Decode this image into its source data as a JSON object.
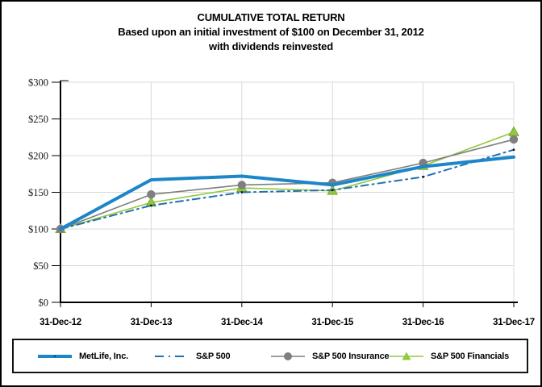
{
  "title": {
    "line1": "CUMULATIVE TOTAL RETURN",
    "line2": "Based upon an initial investment of $100 on December 31, 2012",
    "line3": "with dividends reinvested"
  },
  "chart_data": {
    "type": "line",
    "title": "CUMULATIVE TOTAL RETURN",
    "subtitle": "Based upon an initial investment of $100 on December 31, 2012 with dividends reinvested",
    "x_categories": [
      "31-Dec-12",
      "31-Dec-13",
      "31-Dec-14",
      "31-Dec-15",
      "31-Dec-16",
      "31-Dec-17"
    ],
    "y_tick_labels": [
      "$0",
      "$50",
      "$100",
      "$150",
      "$200",
      "$250",
      "$300"
    ],
    "ylim": [
      0,
      300
    ],
    "y_tick_step": 50,
    "grid": true,
    "legend_position": "bottom",
    "series": [
      {
        "name": "MetLife, Inc.",
        "color": "#1b86c8",
        "style": "solid-thick",
        "marker": "none",
        "values": [
          100,
          167,
          172,
          160,
          185,
          198
        ]
      },
      {
        "name": "S&P 500",
        "color": "#2170b0",
        "style": "dash-dot",
        "marker": "small-dot",
        "marker_color": "#141414",
        "values": [
          100,
          132,
          150,
          153,
          171,
          208
        ]
      },
      {
        "name": "S&P 500 Insurance",
        "color": "#7f7f7f",
        "style": "solid",
        "marker": "circle",
        "values": [
          100,
          147,
          160,
          163,
          190,
          222
        ]
      },
      {
        "name": "S&P 500 Financials",
        "color": "#92c83e",
        "style": "solid",
        "marker": "triangle",
        "marker_edge": "#79aa2e",
        "values": [
          100,
          136,
          156,
          152,
          186,
          232
        ]
      }
    ],
    "colors": {
      "axis": "#000000",
      "gridline": "#d8d8d8",
      "tick_label": "#1a1a1a"
    }
  }
}
